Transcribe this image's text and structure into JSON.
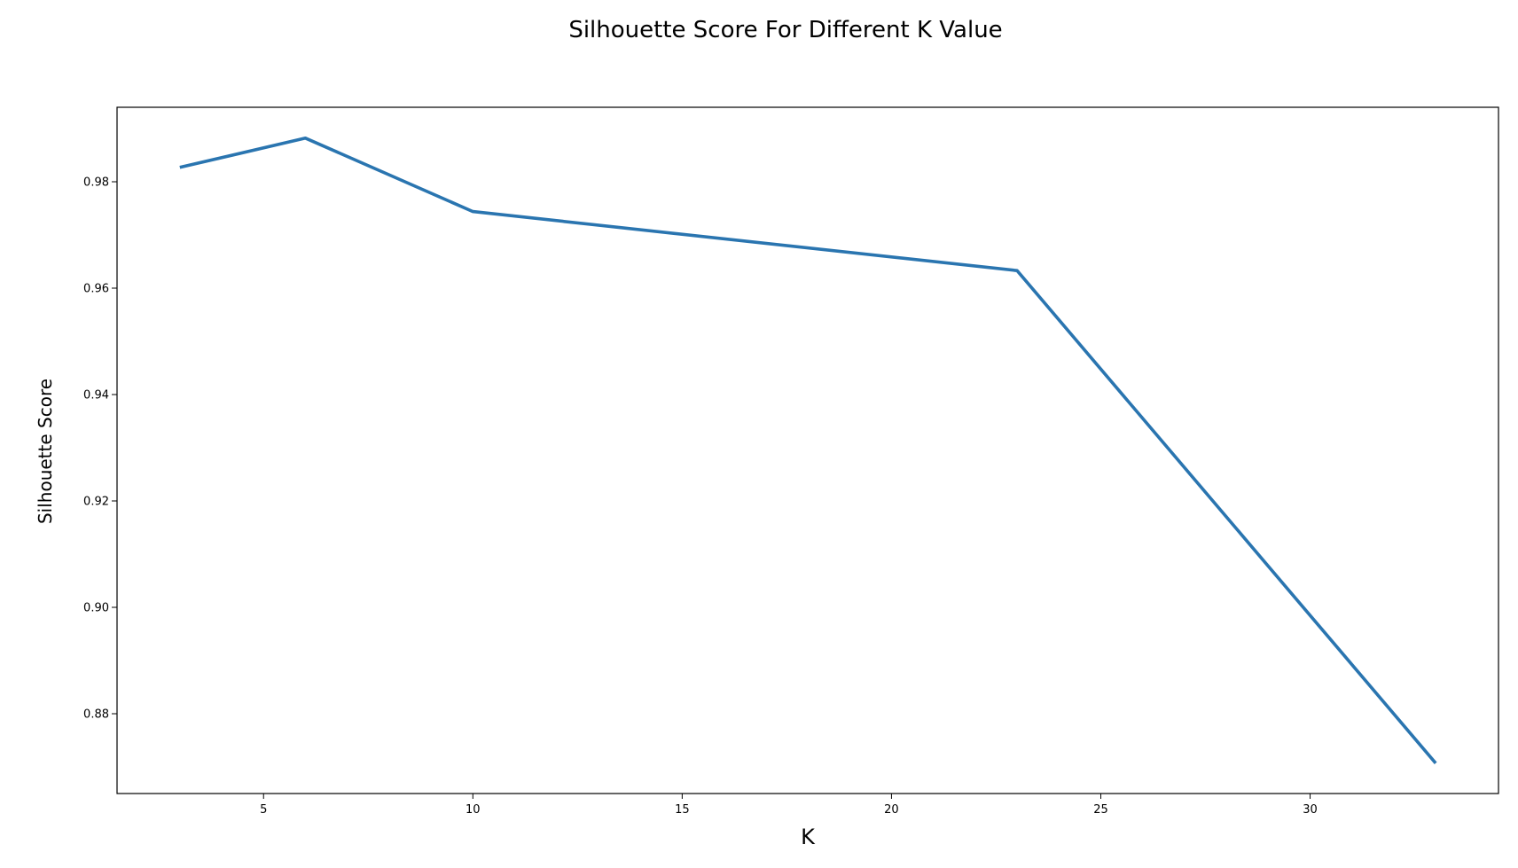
{
  "chart_data": {
    "type": "line",
    "title": "Silhouette Score For Different K Value",
    "xlabel": "K",
    "ylabel": "Silhouette Score",
    "xlim": [
      1.5,
      34.5
    ],
    "ylim": [
      0.865,
      0.994
    ],
    "xticks": [
      5,
      10,
      15,
      20,
      25,
      30
    ],
    "xtick_labels": [
      "5",
      "10",
      "15",
      "20",
      "25",
      "30"
    ],
    "yticks": [
      0.88,
      0.9,
      0.92,
      0.94,
      0.96,
      0.98
    ],
    "ytick_labels": [
      "0.88",
      "0.90",
      "0.92",
      "0.94",
      "0.96",
      "0.98"
    ],
    "grid": false,
    "series": [
      {
        "color": "#2a75b0",
        "x": [
          3,
          6,
          10,
          23,
          33
        ],
        "y": [
          0.9827,
          0.9882,
          0.9744,
          0.9633,
          0.8707
        ]
      }
    ]
  }
}
